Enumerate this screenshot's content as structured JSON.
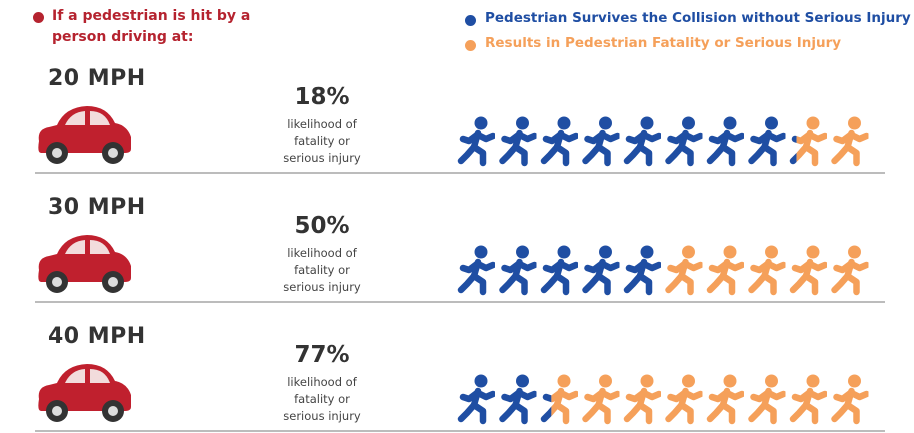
{
  "chart_data": {
    "type": "pictogram",
    "title": "If a pedestrian is hit by a person driving at:",
    "categories": [
      "20 MPH",
      "30 MPH",
      "40 MPH"
    ],
    "description": "likelihood of fatality or serious injury",
    "ylim": [
      0,
      100
    ],
    "series": [
      {
        "name": "Pedestrian Survives the Collision without Serious Injury",
        "color": "#1f4ea3",
        "values": [
          82,
          50,
          23
        ]
      },
      {
        "name": "Results in Pedestrian Fatality or Serious Injury",
        "color": "#f5a05a",
        "values": [
          18,
          50,
          77
        ],
        "value_labels": [
          "18%",
          "50%",
          "77%"
        ]
      }
    ]
  }
}
